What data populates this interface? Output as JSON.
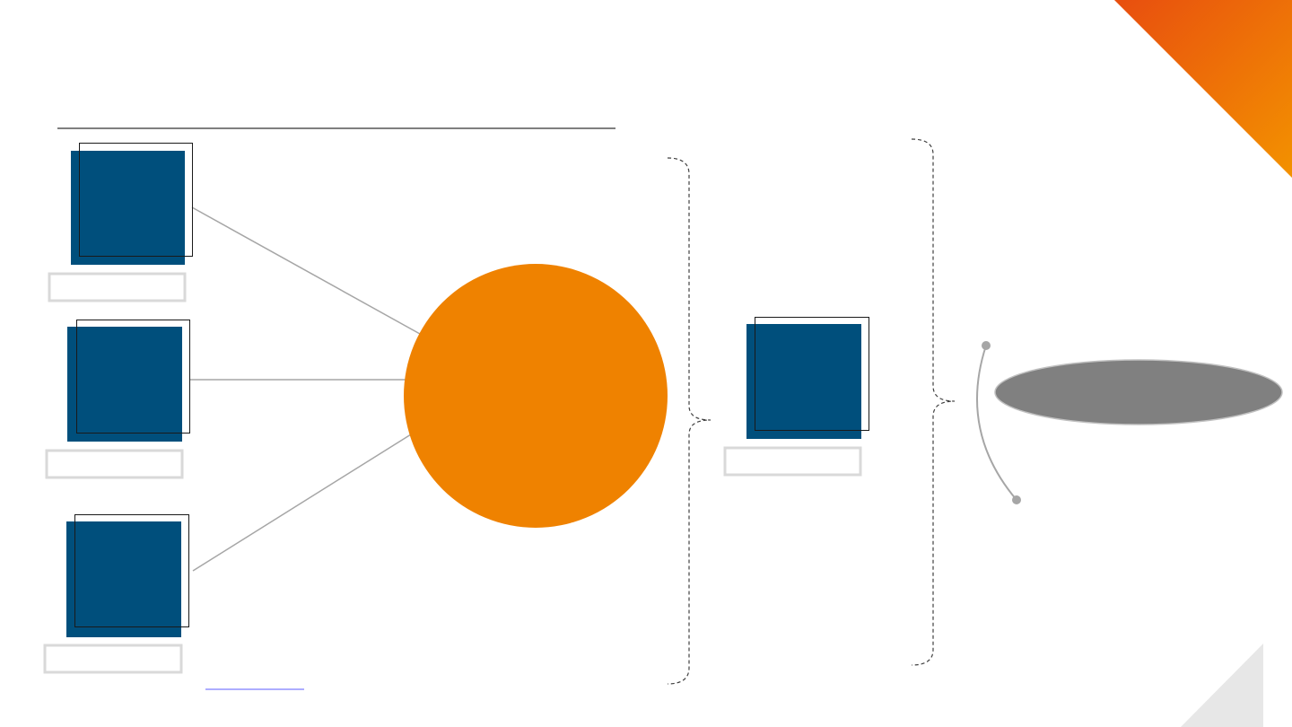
{
  "slide": {
    "title": "",
    "accent_colors": {
      "orange": "#ef8200",
      "deep_orange": "#e84e0f",
      "navy": "#004f7c",
      "gray": "#808080",
      "light_gray": "#e7e7e7"
    }
  },
  "diagram": {
    "input_nodes": [
      {
        "id": "input-1",
        "label": ""
      },
      {
        "id": "input-2",
        "label": ""
      },
      {
        "id": "input-3",
        "label": ""
      }
    ],
    "hub": {
      "label": "",
      "color": "#ef8200"
    },
    "output_node": {
      "label": ""
    },
    "result": {
      "label": "",
      "color": "#808080"
    }
  },
  "footer": {
    "link_text": ""
  }
}
